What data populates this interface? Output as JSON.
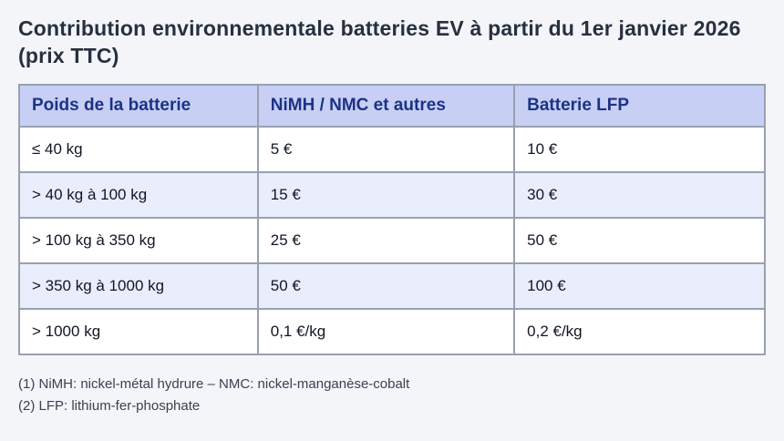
{
  "title": "Contribution environnementale batteries EV à partir du 1er janvier 2026 (prix TTC)",
  "colors": {
    "page_bg": "#f3f5f9",
    "title_text": "#27303f",
    "header_bg": "#c7cff4",
    "header_text": "#1c3286",
    "row_bg": "#ffffff",
    "row_alt_bg": "#eaeefc",
    "border": "#99a0af",
    "cell_text": "#101623",
    "footnote_text": "#3a4250"
  },
  "table": {
    "headers": [
      "Poids de la batterie",
      "NiMH / NMC et autres",
      "Batterie LFP"
    ],
    "rows": [
      [
        "≤ 40 kg",
        "5 €",
        "10 €"
      ],
      [
        "> 40 kg à 100 kg",
        "15 €",
        "30 €"
      ],
      [
        "> 100 kg à 350 kg",
        "25 €",
        "50 €"
      ],
      [
        "> 350 kg à 1000 kg",
        "50 €",
        "100 €"
      ],
      [
        "> 1000 kg",
        "0,1 €/kg",
        "0,2 €/kg"
      ]
    ]
  },
  "footnotes": [
    "(1) NiMH: nickel-métal hydrure – NMC: nickel-manganèse-cobalt",
    "(2) LFP: lithium-fer-phosphate"
  ]
}
